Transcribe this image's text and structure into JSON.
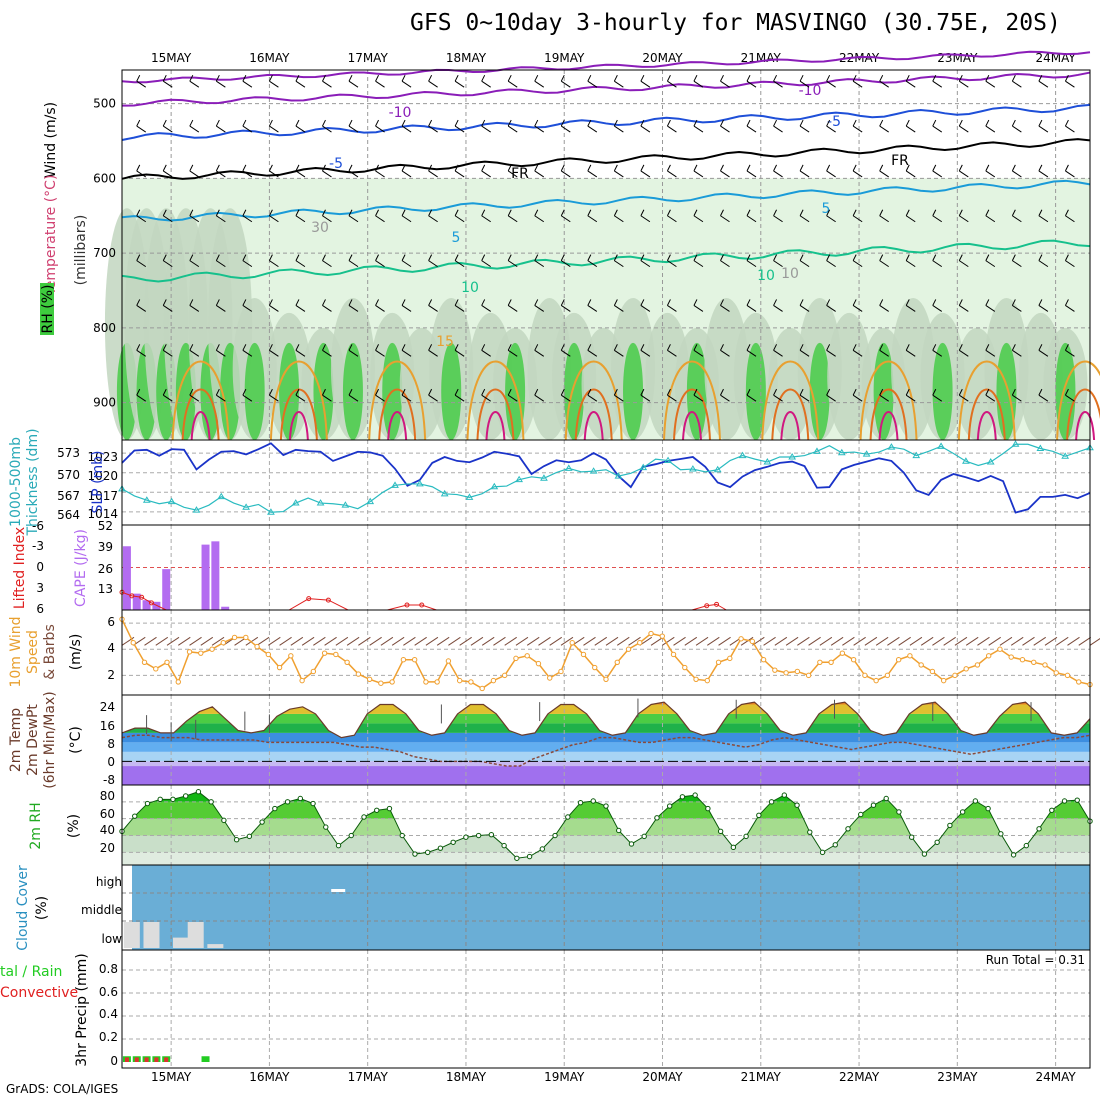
{
  "title": "GFS 0~10day 3-hourly for MASVINGO (30.75E, 20S)",
  "credit": "GrADS: COLA/IGES",
  "dates": [
    "15MAY",
    "16MAY",
    "17MAY",
    "18MAY",
    "19MAY",
    "20MAY",
    "21MAY",
    "22MAY",
    "23MAY",
    "24MAY"
  ],
  "colors": {
    "purple": "#8a1db8",
    "blue": "#1e4fd8",
    "cyan": "#1a9bd8",
    "teal": "#16c08c",
    "orange": "#e8a030",
    "darkorange": "#e07020",
    "magenta": "#d01880",
    "rh_green": "#3ecb3e",
    "rh_light": "#e3f4e1",
    "slp": "#1a33c8",
    "thick": "#2abbc0",
    "cape": "#b36cf0",
    "li": "#e02020",
    "wind10": "#f0a030",
    "cloud": "#6aaed6",
    "precip_total": "#22cc22",
    "precip_conv": "#e03030",
    "dewpt": "#8b4a3a"
  },
  "panels": {
    "upper": {
      "ylabel_wind": "Wind (m/s)",
      "ylabel_temp": "Temperature (°C)",
      "ylabel_rh": "RH (%)",
      "ylabel_units": "(millibars)",
      "yticks": [
        "500",
        "600",
        "700",
        "800",
        "900"
      ],
      "contour_labels": [
        "-10",
        "-10",
        "-5",
        "-5",
        "FR",
        "FR",
        "5",
        "5",
        "10",
        "10",
        "15",
        "10",
        "30"
      ]
    },
    "slp": {
      "ylabel1": "1000-500mb",
      "ylabel2": "Thickness (dm)",
      "ylabel3": "SLP (mb)",
      "yticks_left": [
        "573",
        "570",
        "567",
        "564"
      ],
      "yticks_right": [
        "1023",
        "1020",
        "1017",
        "1014"
      ]
    },
    "cape": {
      "ylabel1": "Lifted Index",
      "ylabel2": "CAPE (J/kg)",
      "yticks_left": [
        "-6",
        "-3",
        "0",
        "3",
        "6"
      ],
      "yticks_right": [
        "52",
        "39",
        "26",
        "13"
      ]
    },
    "wind10": {
      "ylabel1": "10m Wind",
      "ylabel2": "Speed",
      "ylabel3": "& Barbs",
      "ylabel4": "(m/s)",
      "yticks": [
        "6",
        "4",
        "2"
      ]
    },
    "temp": {
      "ylabel1": "2m Temp",
      "ylabel2": "2m DewPt",
      "ylabel3": "(6hr Min/Max)",
      "ylabel4": "(°C)",
      "yticks": [
        "24",
        "16",
        "8",
        "0",
        "-8"
      ]
    },
    "rh": {
      "ylabel1": "2m RH",
      "ylabel2": "(%)",
      "yticks": [
        "80",
        "60",
        "40",
        "20"
      ]
    },
    "cloud": {
      "ylabel1": "Cloud Cover",
      "ylabel2": "(%)",
      "levels": [
        "high",
        "middle",
        "low"
      ]
    },
    "precip": {
      "ylabel1": "tal / Rain",
      "ylabel2": "Convective",
      "ylabel3": "3hr Precip (mm)",
      "yticks": [
        "0.8",
        "0.6",
        "0.4",
        "0.2",
        "0"
      ],
      "run_total": "Run Total = 0.31"
    }
  },
  "chart_data": [
    {
      "type": "line",
      "name_ref": "slp",
      "x_unit": "3-hourly steps from 14.5 MAY",
      "series": [
        {
          "name": "SLP (mb)",
          "values": [
            1021.5,
            1023.4,
            1023.5,
            1022.6,
            1023.6,
            1023.5,
            1020.5,
            1022.0,
            1023.2,
            1023.3,
            1022.8,
            1023.6,
            1024.5,
            1022.7,
            1023.5,
            1023.3,
            1023.2,
            1021.8,
            1022.5,
            1023.2,
            1023.1,
            1022.6,
            1020.6,
            1018.0,
            1018.9,
            1021.5,
            1022.4,
            1021.8,
            1021.6,
            1022.3,
            1023.2,
            1022.9,
            1022.5,
            1019.8,
            1021.0,
            1021.9,
            1021.6,
            1021.9,
            1023.0,
            1022.0,
            1019.5,
            1017.8,
            1020.9,
            1021.3,
            1021.8,
            1022.1,
            1022.4,
            1020.9,
            1018.5,
            1017.8,
            1019.4,
            1020.4,
            1020.9,
            1021.5,
            1021.7,
            1021.0,
            1017.7,
            1017.8,
            1020.5,
            1021.2,
            1021.7,
            1022.2,
            1021.8,
            1020.0,
            1017.3,
            1016.6,
            1018.9,
            1019.8,
            1019.3,
            1018.7,
            1019.5,
            1018.7,
            1013.9,
            1014.4,
            1016.3,
            1016.3,
            1016.6,
            1016.1,
            1016.9
          ]
        },
        {
          "name": "Thickness (dm)",
          "values": [
            567.6,
            566.6,
            566.0,
            565.5,
            565.8,
            565.0,
            564.6,
            565.3,
            566.5,
            565.6,
            565.0,
            565.4,
            564.3,
            564.4,
            565.6,
            566.3,
            565.6,
            565.5,
            565.3,
            564.8,
            565.8,
            567.1,
            568.1,
            568.3,
            568.3,
            567.9,
            566.9,
            566.8,
            566.4,
            566.9,
            567.9,
            568.0,
            568.9,
            569.3,
            569.1,
            569.9,
            570.5,
            570.0,
            570.1,
            570.3,
            569.4,
            569.8,
            570.6,
            571.8,
            571.6,
            570.3,
            570.4,
            570.0,
            570.3,
            571.6,
            572.3,
            571.8,
            571.4,
            572.1,
            572.1,
            572.3,
            572.9,
            573.7,
            572.7,
            572.8,
            572.5,
            572.8,
            573.5,
            573.2,
            572.3,
            572.9,
            573.6,
            572.6,
            571.5,
            570.9,
            571.4,
            572.6,
            573.9,
            573.9,
            573.3,
            572.9,
            572.2,
            572.8,
            573.4
          ]
        }
      ]
    },
    {
      "type": "bar",
      "name_ref": "cape",
      "series": [
        {
          "name": "CAPE (J/kg)",
          "points": [
            [
              14.55,
              39
            ],
            [
              14.65,
              10
            ],
            [
              14.75,
              6
            ],
            [
              14.85,
              5
            ],
            [
              14.95,
              25
            ],
            [
              15.35,
              40
            ],
            [
              15.45,
              42
            ],
            [
              15.55,
              2
            ]
          ]
        },
        {
          "name": "Lifted Index",
          "points": [
            [
              14.5,
              3.5
            ],
            [
              14.6,
              4.0
            ],
            [
              14.7,
              4.2
            ],
            [
              14.8,
              5.0
            ],
            [
              14.95,
              6.0
            ],
            [
              15.5,
              6.0
            ],
            [
              15.7,
              6.0
            ],
            [
              16.2,
              6.0
            ],
            [
              16.4,
              4.4
            ],
            [
              16.6,
              4.6
            ],
            [
              16.8,
              6.0
            ],
            [
              17.2,
              6.0
            ],
            [
              17.4,
              5.3
            ],
            [
              17.55,
              5.3
            ],
            [
              17.7,
              6.0
            ],
            [
              18.5,
              6.0
            ],
            [
              19.6,
              6.0
            ],
            [
              20.3,
              6.0
            ],
            [
              20.45,
              5.4
            ],
            [
              20.55,
              5.2
            ],
            [
              20.65,
              6.0
            ]
          ]
        }
      ]
    },
    {
      "type": "line",
      "name_ref": "wind10",
      "series": [
        {
          "name": "Speed",
          "values": [
            6.3,
            4.5,
            3.0,
            2.5,
            3.0,
            1.5,
            3.8,
            3.7,
            4.0,
            4.5,
            4.9,
            4.9,
            4.2,
            3.6,
            2.6,
            3.5,
            1.6,
            2.3,
            3.7,
            3.6,
            3.0,
            2.1,
            1.7,
            1.4,
            1.5,
            3.2,
            3.2,
            1.5,
            1.5,
            3.1,
            1.6,
            1.5,
            1.0,
            1.6,
            2.0,
            3.3,
            3.5,
            2.9,
            1.8,
            2.3,
            4.5,
            3.6,
            2.6,
            1.7,
            3.0,
            4.0,
            4.5,
            5.2,
            5.0,
            3.6,
            2.6,
            1.7,
            1.6,
            3.0,
            3.3,
            4.8,
            4.6,
            3.2,
            2.4,
            2.2,
            2.3,
            2.0,
            3.0,
            3.0,
            3.7,
            3.2,
            2.0,
            1.6,
            2.0,
            3.2,
            3.5,
            2.8,
            2.3,
            1.6,
            2.0,
            2.5,
            2.8,
            3.5,
            4.0,
            3.4,
            3.2,
            3.0,
            2.8,
            2.2,
            2.0,
            1.5,
            1.3
          ]
        }
      ]
    },
    {
      "type": "area",
      "name_ref": "temp",
      "series": [
        {
          "name": "2m Temp",
          "values": [
            12,
            14,
            14,
            12,
            12,
            17,
            21,
            23,
            18,
            13,
            12,
            13,
            19,
            22,
            23,
            20,
            13,
            10,
            11,
            20,
            24,
            24,
            20,
            13,
            11,
            12,
            20,
            24,
            24,
            20,
            13,
            11,
            12,
            20,
            24,
            24,
            20,
            13,
            11,
            12,
            20,
            24,
            25,
            20,
            13,
            11,
            12,
            20,
            24,
            25,
            20,
            13,
            11,
            12,
            20,
            24,
            25,
            20,
            13,
            11,
            12,
            20,
            24,
            25,
            20,
            13,
            11,
            12,
            19,
            24,
            25,
            20,
            12,
            11,
            12,
            18
          ]
        },
        {
          "name": "2m DewPt",
          "values": [
            10,
            11,
            11,
            10,
            10,
            10,
            9,
            9,
            9,
            9,
            9,
            8,
            8,
            8,
            8,
            8,
            8,
            7,
            6,
            6,
            5,
            4,
            2,
            1,
            0,
            0,
            0,
            0,
            -1,
            -2,
            -2,
            1,
            3,
            5,
            7,
            8,
            10,
            10,
            9,
            8,
            8,
            9,
            10,
            10,
            9,
            8,
            7,
            6,
            7,
            9,
            10,
            9,
            8,
            7,
            6,
            5,
            6,
            7,
            8,
            8,
            7,
            6,
            5,
            4,
            3,
            4,
            5,
            6,
            7,
            8,
            9,
            10,
            10,
            11
          ]
        },
        {
          "name": "6hr Max",
          "points": [
            [
              14.75,
              19.5
            ],
            [
              15.0,
              16.5
            ],
            [
              15.25,
              17.5
            ],
            [
              15.75,
              21.0
            ],
            [
              16.0,
              19.8
            ],
            [
              17.75,
              24.0
            ],
            [
              18.75,
              25.0
            ],
            [
              19.75,
              26.5
            ],
            [
              20.75,
              26.0
            ],
            [
              21.75,
              26.0
            ],
            [
              22.75,
              25.0
            ],
            [
              23.75,
              25.0
            ]
          ]
        }
      ]
    },
    {
      "type": "area",
      "name_ref": "rh",
      "series": [
        {
          "name": "2m RH",
          "values": [
            45,
            63,
            78,
            83,
            83,
            87,
            92,
            80,
            58,
            35,
            39,
            56,
            72,
            80,
            84,
            78,
            50,
            28,
            40,
            62,
            70,
            72,
            40,
            18,
            20,
            25,
            32,
            38,
            40,
            41,
            28,
            13,
            15,
            24,
            40,
            62,
            79,
            81,
            75,
            46,
            30,
            39,
            61,
            75,
            86,
            88,
            72,
            45,
            26,
            39,
            64,
            80,
            88,
            76,
            44,
            20,
            29,
            48,
            65,
            76,
            84,
            68,
            38,
            18,
            32,
            52,
            68,
            81,
            72,
            42,
            17,
            28,
            48,
            70,
            81,
            82,
            57
          ]
        }
      ]
    },
    {
      "type": "bar",
      "name_ref": "cloud",
      "series": [
        {
          "name": "low",
          "points": [
            [
              14.6,
              100
            ],
            [
              14.8,
              100
            ],
            [
              15.1,
              40
            ],
            [
              15.25,
              100
            ],
            [
              15.45,
              15
            ]
          ]
        },
        {
          "name": "high",
          "points": [
            [
              16.7,
              10
            ]
          ]
        }
      ]
    },
    {
      "type": "bar",
      "name_ref": "precip",
      "series": [
        {
          "name": "Total",
          "points": [
            [
              14.55,
              0.05
            ],
            [
              14.65,
              0.05
            ],
            [
              14.75,
              0.05
            ],
            [
              14.85,
              0.05
            ],
            [
              14.95,
              0.05
            ],
            [
              15.35,
              0.05
            ]
          ]
        },
        {
          "name": "Convective",
          "points": [
            [
              14.55,
              0.04
            ],
            [
              14.65,
              0.04
            ],
            [
              14.75,
              0.04
            ],
            [
              14.85,
              0.04
            ],
            [
              14.95,
              0.04
            ]
          ]
        }
      ]
    }
  ]
}
